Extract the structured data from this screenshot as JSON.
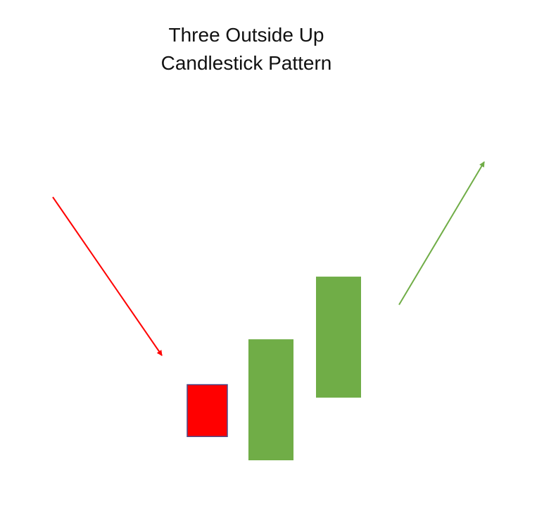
{
  "title": {
    "line1": "Three Outside Up",
    "line2": "Candlestick Pattern"
  },
  "colors": {
    "bearish": "#ff0000",
    "bearish_border": "#4a4a8a",
    "bullish": "#70ad47",
    "downtrend_arrow": "#ff0000",
    "uptrend_arrow": "#70ad47"
  },
  "candles": [
    {
      "kind": "bearish",
      "open": 3.5,
      "close": 1.1
    },
    {
      "kind": "bullish",
      "open": 0.0,
      "close": 5.6
    },
    {
      "kind": "bullish",
      "open": 2.9,
      "close": 8.5
    }
  ],
  "arrows": [
    {
      "kind": "downtrend",
      "direction": "down"
    },
    {
      "kind": "uptrend",
      "direction": "up"
    }
  ]
}
